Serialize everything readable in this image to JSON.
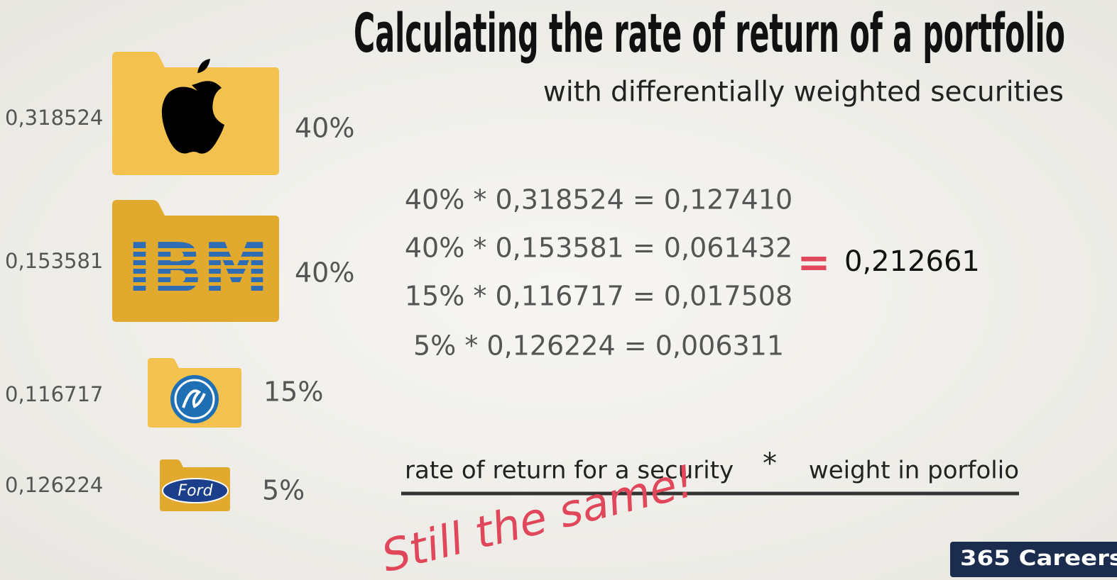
{
  "header": {
    "title": "Calculating the rate of return of a portfolio",
    "subtitle": "with differentially weighted securities"
  },
  "securities": [
    {
      "return": "0,318524",
      "weight": "40%"
    },
    {
      "return": "0,153581",
      "weight": "40%",
      "logo_text": "IBM"
    },
    {
      "return": "0,116717",
      "weight": "15%"
    },
    {
      "return": "0,126224",
      "weight": "5%",
      "logo_text": "Ford"
    }
  ],
  "equations": [
    "40% * 0,318524 = 0,127410",
    "40% * 0,153581 = 0,061432",
    "15% * 0,116717 = 0,017508",
    "5% * 0,126224 = 0,006311"
  ],
  "total": {
    "sign": "=",
    "value": "0,212661"
  },
  "formula": {
    "left": "rate of return for a security",
    "operator": "*",
    "right": "weight in porfolio"
  },
  "annotation": "Still the same!",
  "brand": "365 Careers"
}
